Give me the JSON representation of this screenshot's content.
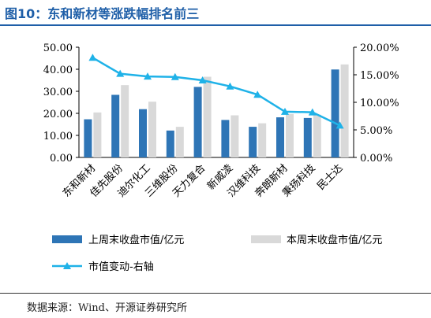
{
  "header": {
    "title": "图10：东和新材等涨跌幅排名前三"
  },
  "footer": {
    "source": "数据来源：Wind、开源证券研究所"
  },
  "colors": {
    "bar1": "#2e75b6",
    "bar2": "#d9d9d9",
    "line": "#1fb2e8",
    "title": "#1f5fa8"
  },
  "chart_data": {
    "type": "bar",
    "categories": [
      "东和新材",
      "佳先股份",
      "迪尔化工",
      "三维股份",
      "天力复合",
      "新威凌",
      "汉维科技",
      "奔朗新材",
      "秉扬科技",
      "民士达"
    ],
    "series": [
      {
        "name": "上周末收盘市值/亿元",
        "type": "bar",
        "axis": "left",
        "values": [
          17.3,
          28.4,
          21.9,
          12.2,
          32.0,
          17.0,
          13.9,
          18.2,
          17.9,
          39.9
        ]
      },
      {
        "name": "本周末收盘市值/亿元",
        "type": "bar",
        "axis": "left",
        "values": [
          20.4,
          32.8,
          25.3,
          13.9,
          36.6,
          19.1,
          15.5,
          19.7,
          19.4,
          42.2
        ]
      },
      {
        "name": "市值变动-右轴",
        "type": "line",
        "axis": "right",
        "values": [
          18.1,
          15.2,
          14.7,
          14.6,
          14.0,
          12.9,
          11.4,
          8.3,
          8.2,
          5.8
        ]
      }
    ],
    "ylim_left": [
      0,
      50
    ],
    "yticks_left": [
      "0.00",
      "10.00",
      "20.00",
      "30.00",
      "40.00",
      "50.00"
    ],
    "ylim_right": [
      0,
      20
    ],
    "yticks_right": [
      "0.00%",
      "5.00%",
      "10.00%",
      "15.00%",
      "20.00%"
    ],
    "legend_position": "bottom",
    "grid": false
  }
}
